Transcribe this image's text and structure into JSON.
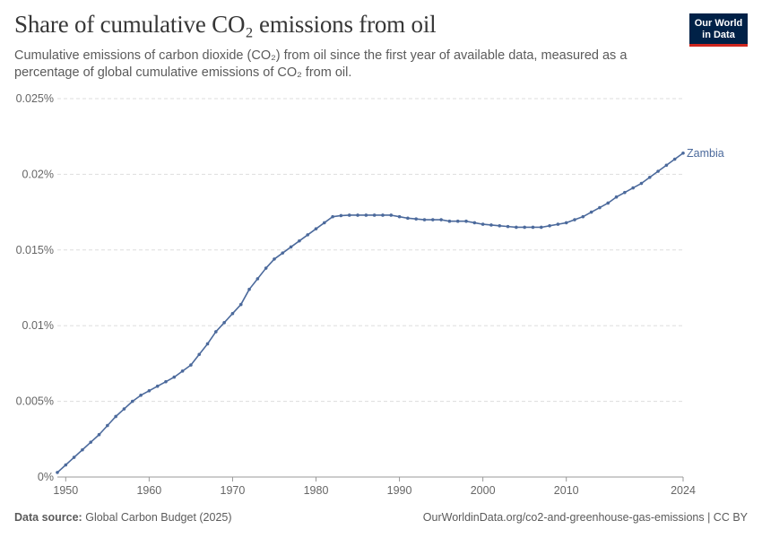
{
  "header": {
    "title": "Share of cumulative CO₂ emissions from oil",
    "subtitle": "Cumulative emissions of carbon dioxide (CO₂) from oil since the first year of available data, measured as a percentage of global cumulative emissions of CO₂ from oil."
  },
  "logo": {
    "line1": "Our World",
    "line2": "in Data"
  },
  "footer": {
    "source_label": "Data source:",
    "source_text": "Global Carbon Budget (2025)",
    "url": "OurWorldinData.org/co2-and-greenhouse-gas-emissions | CC BY"
  },
  "colors": {
    "series": "#4c6a9c",
    "grid": "#dddddd",
    "text": "#666666",
    "logo_bg": "#002147",
    "logo_accent": "#ce261e"
  },
  "chart_data": {
    "type": "line",
    "title": "Share of cumulative CO₂ emissions from oil",
    "xlabel": "",
    "ylabel": "",
    "xlim": [
      1949,
      2024
    ],
    "ylim": [
      0,
      0.025
    ],
    "x_ticks": [
      1950,
      1960,
      1970,
      1980,
      1990,
      2000,
      2010,
      2024
    ],
    "x_tick_labels": [
      "1950",
      "1960",
      "1970",
      "1980",
      "1990",
      "2000",
      "2010",
      "2024"
    ],
    "y_ticks": [
      0,
      0.005,
      0.01,
      0.015,
      0.02,
      0.025
    ],
    "y_tick_labels": [
      "0%",
      "0.005%",
      "0.01%",
      "0.015%",
      "0.02%",
      "0.025%"
    ],
    "grid": "horizontal dashed",
    "series": [
      {
        "name": "Zambia",
        "x": [
          1949,
          1950,
          1951,
          1952,
          1953,
          1954,
          1955,
          1956,
          1957,
          1958,
          1959,
          1960,
          1961,
          1962,
          1963,
          1964,
          1965,
          1966,
          1967,
          1968,
          1969,
          1970,
          1971,
          1972,
          1973,
          1974,
          1975,
          1976,
          1977,
          1978,
          1979,
          1980,
          1981,
          1982,
          1983,
          1984,
          1985,
          1986,
          1987,
          1988,
          1989,
          1990,
          1991,
          1992,
          1993,
          1994,
          1995,
          1996,
          1997,
          1998,
          1999,
          2000,
          2001,
          2002,
          2003,
          2004,
          2005,
          2006,
          2007,
          2008,
          2009,
          2010,
          2011,
          2012,
          2013,
          2014,
          2015,
          2016,
          2017,
          2018,
          2019,
          2020,
          2021,
          2022,
          2023,
          2024
        ],
        "y": [
          0.0003,
          0.0008,
          0.0013,
          0.0018,
          0.0023,
          0.0028,
          0.0034,
          0.004,
          0.0045,
          0.005,
          0.0054,
          0.0057,
          0.006,
          0.0063,
          0.0066,
          0.007,
          0.0074,
          0.0081,
          0.0088,
          0.0096,
          0.0102,
          0.0108,
          0.0114,
          0.0124,
          0.0131,
          0.0138,
          0.0144,
          0.0148,
          0.0152,
          0.0156,
          0.016,
          0.0164,
          0.0168,
          0.0172,
          0.01727,
          0.0173,
          0.0173,
          0.0173,
          0.0173,
          0.0173,
          0.0173,
          0.0172,
          0.0171,
          0.01705,
          0.017,
          0.017,
          0.017,
          0.0169,
          0.0169,
          0.0169,
          0.0168,
          0.0167,
          0.01665,
          0.0166,
          0.01655,
          0.0165,
          0.0165,
          0.0165,
          0.0165,
          0.0166,
          0.0167,
          0.0168,
          0.017,
          0.0172,
          0.0175,
          0.0178,
          0.0181,
          0.0185,
          0.0188,
          0.0191,
          0.0194,
          0.0198,
          0.0202,
          0.0206,
          0.021,
          0.0214
        ]
      }
    ]
  }
}
